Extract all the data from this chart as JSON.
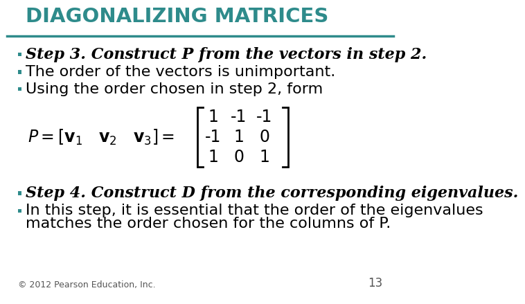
{
  "title": "DIAGONALIZING MATRICES",
  "title_color": "#2E8B8B",
  "background_color": "#ffffff",
  "bullet_color": "#2E8B8B",
  "text_color": "#000000",
  "footer_text": "© 2012 Pearson Education, Inc.",
  "page_number": "13",
  "lines": [
    {
      "text": "Step 3. Construct P from the vectors in step 2.",
      "bold_italic": true,
      "bullet": true,
      "fontsize": 16
    },
    {
      "text": "The order of the vectors is unimportant.",
      "bold_italic": false,
      "bullet": true,
      "fontsize": 16
    },
    {
      "text": "Using the order chosen in step 2, form",
      "bold_italic": false,
      "bullet": true,
      "fontsize": 16
    }
  ],
  "matrix_entries": [
    [
      "1",
      "-1",
      "-1"
    ],
    [
      "-1",
      "1",
      "0"
    ],
    [
      "1",
      "0",
      "1"
    ]
  ],
  "step4_lines": [
    {
      "text": "Step 4. Construct D from the corresponding eigenvalues.",
      "bold_italic": true,
      "bullet": true,
      "fontsize": 16
    },
    {
      "text": "In this step, it is essential that the order of the eigenvalues",
      "bold_italic": false,
      "bullet": true,
      "fontsize": 16
    },
    {
      "text": "matches the order chosen for the columns of P.",
      "bold_italic": false,
      "bullet": false,
      "fontsize": 16
    }
  ]
}
